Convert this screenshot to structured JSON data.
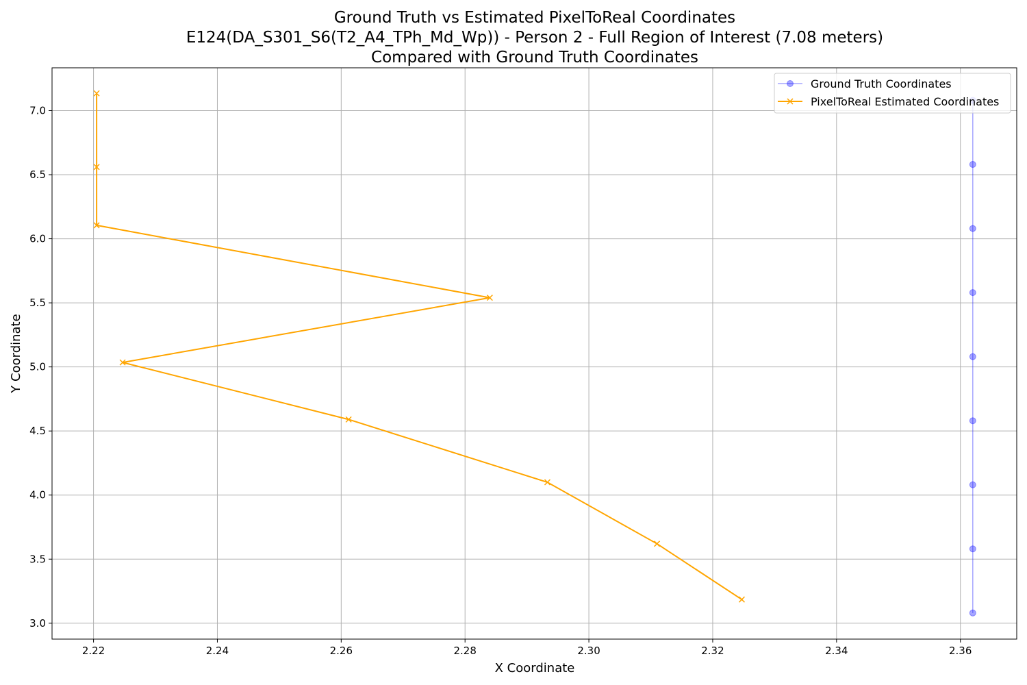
{
  "chart_data": {
    "type": "line",
    "title_lines": [
      "Ground Truth vs Estimated PixelToReal Coordinates",
      "E124(DA_S301_S6(T2_A4_TPh_Md_Wp)) - Person 2 - Full Region of Interest (7.08 meters)",
      "Compared with Ground Truth Coordinates"
    ],
    "xlabel": "X Coordinate",
    "ylabel": "Y Coordinate",
    "xlim": [
      2.2133,
      2.3691
    ],
    "ylim": [
      2.876,
      7.334
    ],
    "xticks": [
      "2.22",
      "2.24",
      "2.26",
      "2.28",
      "2.30",
      "2.32",
      "2.34",
      "2.36"
    ],
    "yticks": [
      "3.0",
      "3.5",
      "4.0",
      "4.5",
      "5.0",
      "5.5",
      "6.0",
      "6.5",
      "7.0"
    ],
    "grid": true,
    "legend_position": "top-right",
    "series": [
      {
        "name": "Ground Truth Coordinates",
        "color": "#0000ff",
        "marker": "circle",
        "x": [
          2.362,
          2.362,
          2.362,
          2.362,
          2.362,
          2.362,
          2.362,
          2.362,
          2.362
        ],
        "y": [
          3.08,
          3.58,
          4.08,
          4.58,
          5.08,
          5.58,
          6.08,
          6.58,
          7.08
        ]
      },
      {
        "name": "PixelToReal Estimated Coordinates",
        "color": "#ffa500",
        "marker": "x",
        "x": [
          2.3247,
          2.311,
          2.2933,
          2.2612,
          2.2247,
          2.284,
          2.2205,
          2.2205,
          2.2205
        ],
        "y": [
          3.185,
          3.62,
          4.1,
          4.59,
          5.035,
          5.54,
          6.105,
          6.56,
          7.135
        ]
      }
    ]
  }
}
